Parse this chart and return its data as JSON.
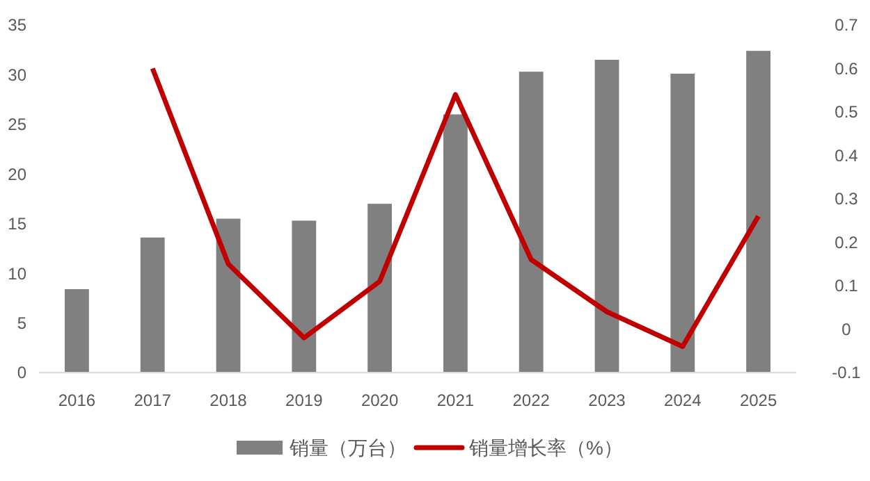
{
  "chart_data": {
    "type": "bar",
    "categories": [
      "2016",
      "2017",
      "2018",
      "2019",
      "2020",
      "2021",
      "2022",
      "2023",
      "2024",
      "2025"
    ],
    "series": [
      {
        "name": "销量（万台）",
        "color": "#808080",
        "values": [
          8.4,
          13.6,
          15.5,
          15.3,
          17.0,
          26.0,
          30.3,
          31.5,
          30.1,
          32.4
        ]
      },
      {
        "name": "销量增长率（%）",
        "type": "line",
        "axis": "y2",
        "color": "#c00000",
        "values": [
          null,
          0.6,
          0.15,
          -0.02,
          0.11,
          0.54,
          0.16,
          0.04,
          -0.04,
          0.26
        ]
      }
    ],
    "ylim": [
      0,
      35
    ],
    "yticks": [
      0,
      5,
      10,
      15,
      20,
      25,
      30,
      35
    ],
    "y2lim": [
      -0.1,
      0.7
    ],
    "y2ticks": [
      {
        "value": -0.1,
        "label": "-0.1"
      },
      {
        "value": 0,
        "label": "0"
      },
      {
        "value": 0.1,
        "label": "0.1"
      },
      {
        "value": 0.2,
        "label": "0.2"
      },
      {
        "value": 0.3,
        "label": "0.3"
      },
      {
        "value": 0.4,
        "label": "0.4"
      },
      {
        "value": 0.5,
        "label": "0.5"
      },
      {
        "value": 0.6,
        "label": "0.6"
      },
      {
        "value": 0.7,
        "label": "0.7"
      }
    ],
    "legend": "bottom",
    "grid": false
  }
}
